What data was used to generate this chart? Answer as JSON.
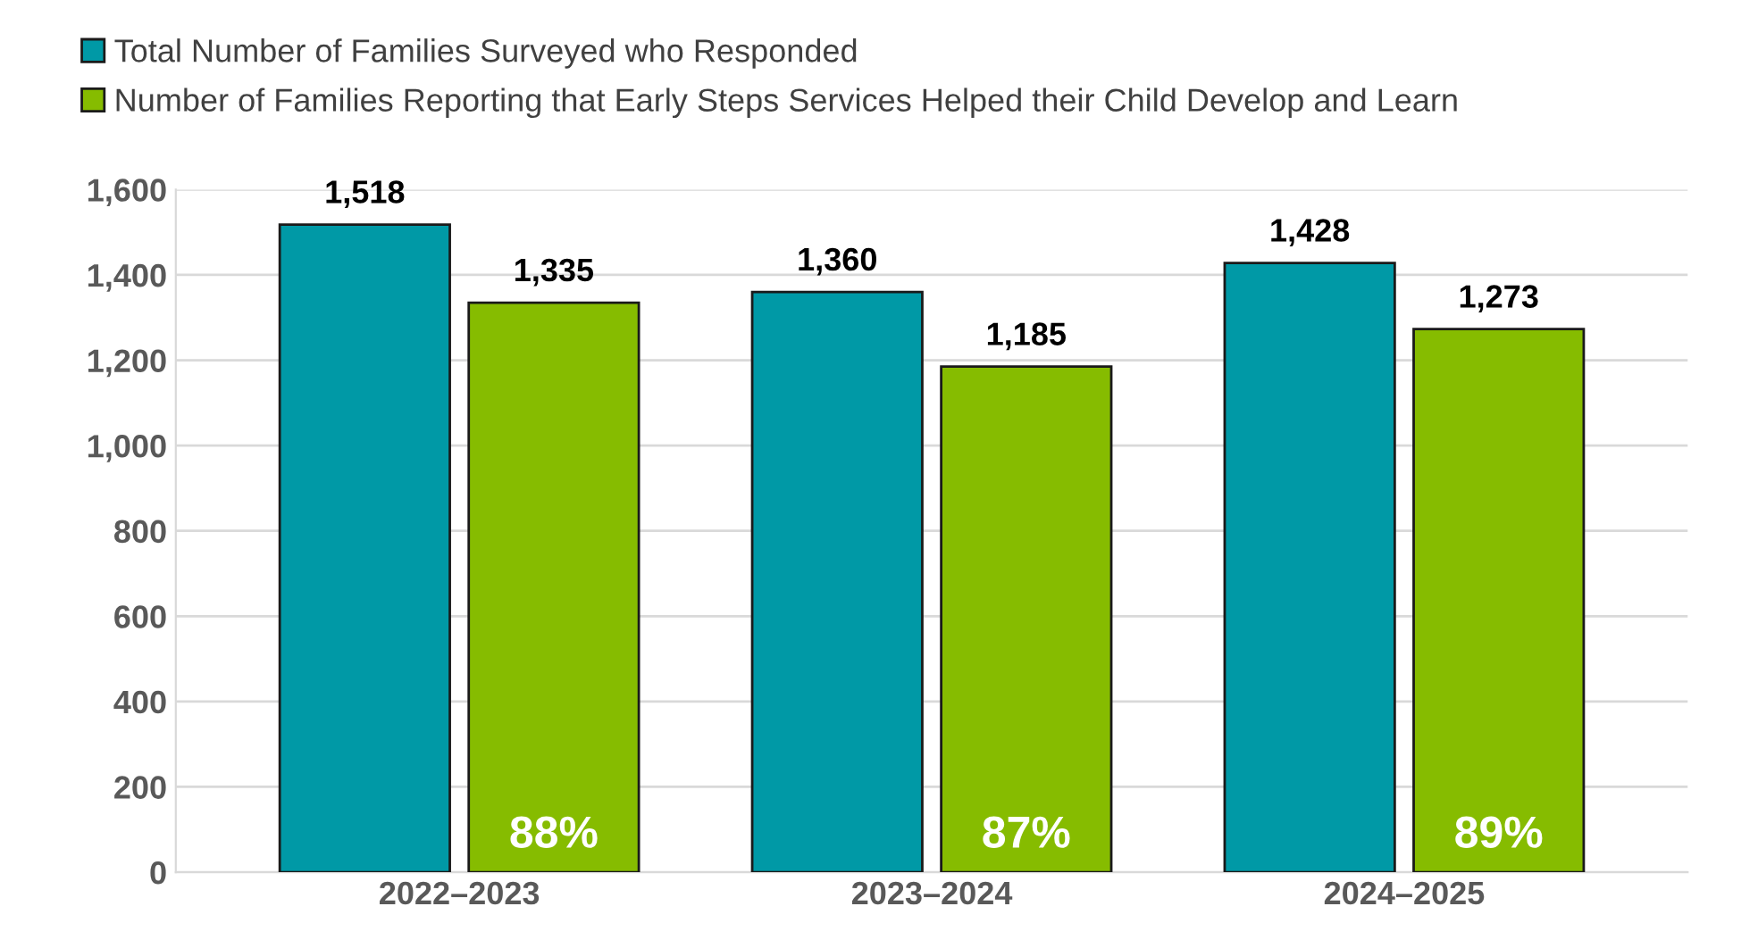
{
  "chart_data": {
    "type": "bar",
    "categories": [
      "2022–2023",
      "2023–2024",
      "2024–2025"
    ],
    "series": [
      {
        "name": "Total Number of Families Surveyed who Responded",
        "color": "#0099a6",
        "values": [
          1518,
          1360,
          1428
        ]
      },
      {
        "name": "Number of Families Reporting that Early Steps Services Helped their Child Develop and Learn",
        "color": "#86bc00",
        "values": [
          1335,
          1185,
          1273
        ]
      }
    ],
    "ylim": [
      0,
      1600
    ],
    "yticks": [
      {
        "value": 0,
        "label": "0"
      },
      {
        "value": 200,
        "label": "200"
      },
      {
        "value": 400,
        "label": "400"
      },
      {
        "value": 600,
        "label": "600"
      },
      {
        "value": 800,
        "label": "800"
      },
      {
        "value": 1000,
        "label": "1,000"
      },
      {
        "value": 1200,
        "label": "1,200"
      },
      {
        "value": 1400,
        "label": "1,400"
      },
      {
        "value": 1600,
        "label": "1,600"
      }
    ],
    "value_labels": [
      [
        "1,518",
        "1,360",
        "1,428"
      ],
      [
        "1,335",
        "1,185",
        "1,273"
      ]
    ],
    "annotations": [
      "88%",
      "87%",
      "89%"
    ],
    "grid": "y",
    "legend": "top left"
  }
}
